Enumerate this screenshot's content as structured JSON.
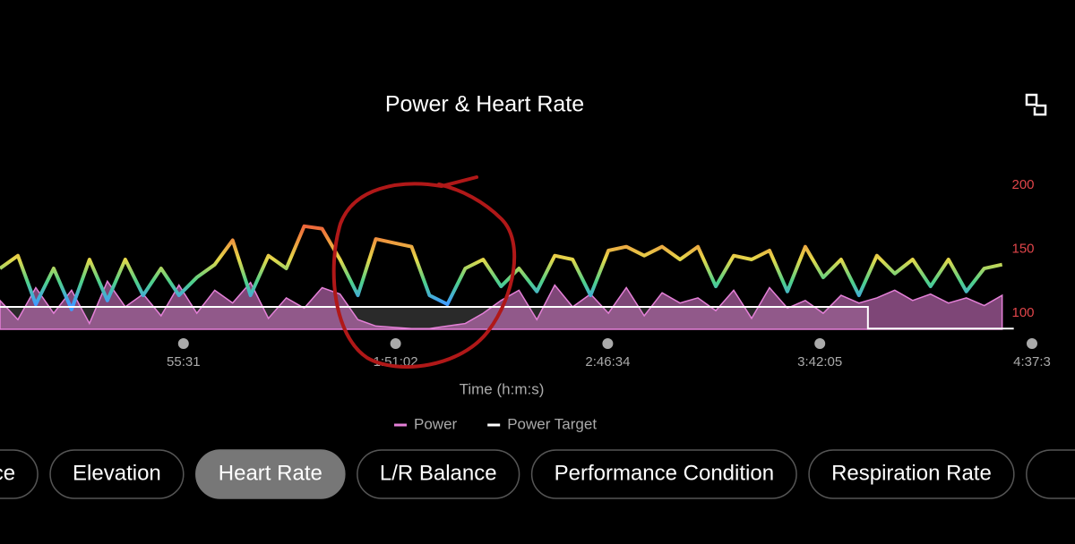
{
  "chart_data": {
    "type": "line",
    "title": "Power & Heart Rate",
    "xlabel": "Time (h:m:s)",
    "x": [
      450,
      731,
      1012,
      1293,
      1574,
      1855,
      2136,
      2417,
      2698,
      2979,
      3260,
      3541,
      3822,
      4103,
      4384,
      4665,
      4946,
      5227,
      5508,
      5789,
      6070,
      6351,
      6632,
      6913,
      7194,
      7475,
      7756,
      8037,
      8318,
      8599,
      8880,
      9161,
      9442,
      9723,
      10004,
      10285,
      10566,
      10847,
      11128,
      11409,
      11690,
      11971,
      12252,
      12533,
      12814,
      13095,
      13376,
      13657,
      13938,
      14219,
      14500,
      14781,
      15062,
      15343,
      15624,
      15905,
      16186
    ],
    "series": [
      {
        "name": "Power Target",
        "color": "#ffffff",
        "fill": "#2a2a2a",
        "kind": "step",
        "values": [
          105,
          105,
          105,
          105,
          105,
          105,
          105,
          105,
          105,
          105,
          105,
          105,
          105,
          105,
          105,
          105,
          105,
          105,
          105,
          105,
          105,
          105,
          105,
          105,
          105,
          105,
          105,
          105,
          105,
          105,
          105,
          105,
          105,
          105,
          105,
          105,
          105,
          105,
          105,
          105,
          105,
          105,
          105,
          105,
          105,
          105,
          105,
          105,
          105,
          88,
          88,
          88,
          88,
          88,
          88,
          88,
          88
        ]
      },
      {
        "name": "Power",
        "color": "#e580d8",
        "kind": "area",
        "values": [
          110,
          95,
          120,
          100,
          118,
          92,
          125,
          105,
          115,
          98,
          122,
          100,
          118,
          108,
          124,
          96,
          112,
          104,
          120,
          115,
          95,
          90,
          89,
          88,
          88,
          90,
          92,
          100,
          110,
          118,
          95,
          122,
          105,
          115,
          100,
          120,
          98,
          116,
          108,
          112,
          102,
          118,
          96,
          120,
          104,
          110,
          100,
          114,
          108,
          112,
          118,
          110,
          115,
          108,
          112,
          106,
          114
        ]
      },
      {
        "kind": "line",
        "colors": [
          "#e8433a",
          "#f08a3c",
          "#e4d84a",
          "#4fd08a",
          "#3f9bff"
        ],
        "values": [
          135,
          145,
          107,
          135,
          103,
          142,
          110,
          142,
          114,
          135,
          114,
          128,
          138,
          157,
          114,
          145,
          135,
          168,
          166,
          142,
          114,
          158,
          155,
          152,
          114,
          107,
          135,
          142,
          121,
          135,
          117,
          145,
          142,
          114,
          149,
          152,
          145,
          152,
          142,
          152,
          121,
          145,
          142,
          149,
          117,
          152,
          128,
          142,
          114,
          145,
          131,
          142,
          121,
          142,
          117,
          135,
          138
        ]
      }
    ],
    "xlim": [
      0,
      16655
    ],
    "xticks": [
      {
        "value": 3331,
        "label": "55:31"
      },
      {
        "value": 6662,
        "label": "1:51:02"
      },
      {
        "value": 9993,
        "label": "2:46:34"
      },
      {
        "value": 13324,
        "label": "3:42:05"
      },
      {
        "value": 16655,
        "label": "4:37:3"
      }
    ],
    "ylim": [
      87.5,
      200
    ],
    "yticks": [
      100,
      150,
      200
    ]
  },
  "tabs": [
    "ence",
    "Elevation",
    "Heart Rate",
    "L/R Balance",
    "Performance Condition",
    "Respiration Rate"
  ],
  "selected_tab": 2
}
